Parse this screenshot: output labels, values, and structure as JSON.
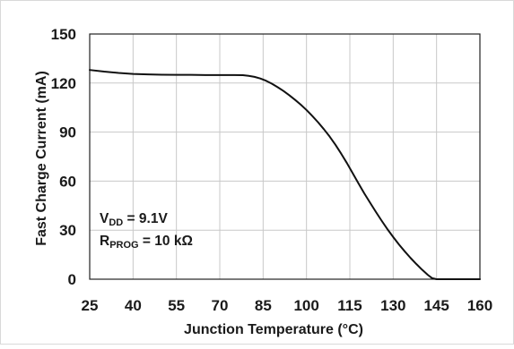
{
  "chart_data": {
    "type": "line",
    "title": "",
    "xlabel": "Junction Temperature (°C)",
    "ylabel": "Fast Charge Current (mA)",
    "xlim": [
      25,
      160
    ],
    "ylim": [
      0,
      150
    ],
    "x_ticks": [
      "25",
      "40",
      "55",
      "70",
      "85",
      "100",
      "115",
      "130",
      "145",
      "160"
    ],
    "y_ticks": [
      "0",
      "30",
      "60",
      "90",
      "120",
      "150"
    ],
    "grid": true,
    "legend": "none",
    "series": [
      {
        "color": "#111111",
        "x": [
          25,
          30,
          35,
          40,
          45,
          50,
          55,
          60,
          65,
          70,
          75,
          78,
          80,
          82,
          84,
          86,
          88,
          90,
          92,
          94,
          96,
          98,
          100,
          102,
          104,
          106,
          108,
          110,
          112,
          114,
          116,
          118,
          120,
          122,
          124,
          126,
          128,
          130,
          132,
          134,
          136,
          138,
          140,
          142,
          143.5,
          145,
          150,
          155,
          160
        ],
        "y": [
          128,
          127,
          126.2,
          125.6,
          125.3,
          125.1,
          125,
          125,
          124.9,
          124.9,
          124.9,
          124.8,
          124.4,
          123.8,
          122.8,
          121.4,
          119.6,
          117.5,
          115.2,
          112.6,
          109.8,
          106.8,
          103.5,
          99.9,
          96.0,
          91.8,
          87.3,
          82.3,
          76.8,
          71.0,
          64.8,
          58.6,
          52.5,
          46.8,
          41.2,
          35.8,
          30.6,
          25.8,
          21.2,
          17.0,
          13.0,
          9.3,
          5.8,
          2.6,
          0.6,
          0,
          0,
          0,
          0
        ]
      }
    ],
    "annotations": {
      "vdd_main": "V",
      "vdd_sub": "DD",
      "vdd_value": " = 9.1V",
      "rprog_main": "R",
      "rprog_sub": "PROG",
      "rprog_value": " = 10 kΩ"
    }
  }
}
